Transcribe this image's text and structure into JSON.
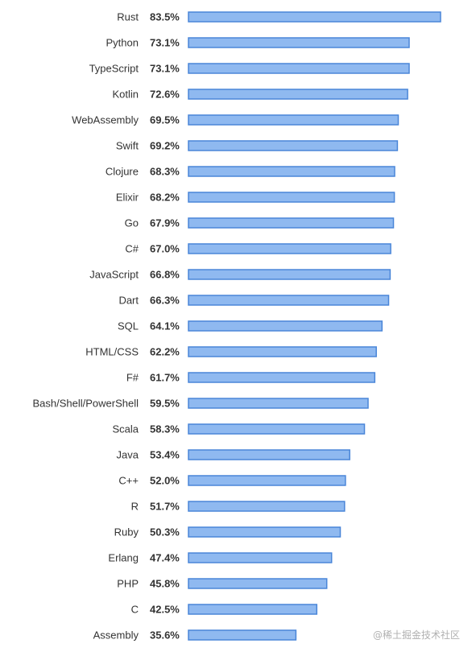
{
  "chart_data": {
    "type": "bar",
    "orientation": "horizontal",
    "categories": [
      "Rust",
      "Python",
      "TypeScript",
      "Kotlin",
      "WebAssembly",
      "Swift",
      "Clojure",
      "Elixir",
      "Go",
      "C#",
      "JavaScript",
      "Dart",
      "SQL",
      "HTML/CSS",
      "F#",
      "Bash/Shell/PowerShell",
      "Scala",
      "Java",
      "C++",
      "R",
      "Ruby",
      "Erlang",
      "PHP",
      "C",
      "Assembly"
    ],
    "values": [
      83.5,
      73.1,
      73.1,
      72.6,
      69.5,
      69.2,
      68.3,
      68.2,
      67.9,
      67.0,
      66.8,
      66.3,
      64.1,
      62.2,
      61.7,
      59.5,
      58.3,
      53.4,
      52.0,
      51.7,
      50.3,
      47.4,
      45.8,
      42.5,
      35.6
    ],
    "value_labels": [
      "83.5%",
      "73.1%",
      "73.1%",
      "72.6%",
      "69.5%",
      "69.2%",
      "68.3%",
      "68.2%",
      "67.9%",
      "67.0%",
      "66.8%",
      "66.3%",
      "64.1%",
      "62.2%",
      "61.7%",
      "59.5%",
      "58.3%",
      "53.4%",
      "52.0%",
      "51.7%",
      "50.3%",
      "47.4%",
      "45.8%",
      "42.5%",
      "35.6%"
    ],
    "xlim": [
      0,
      83.5
    ],
    "grid": false,
    "colors": {
      "bar_fill": "#8fb9f0",
      "bar_stroke": "#4a86d8",
      "text": "#333333"
    }
  },
  "watermark": "@稀土掘金技术社区"
}
